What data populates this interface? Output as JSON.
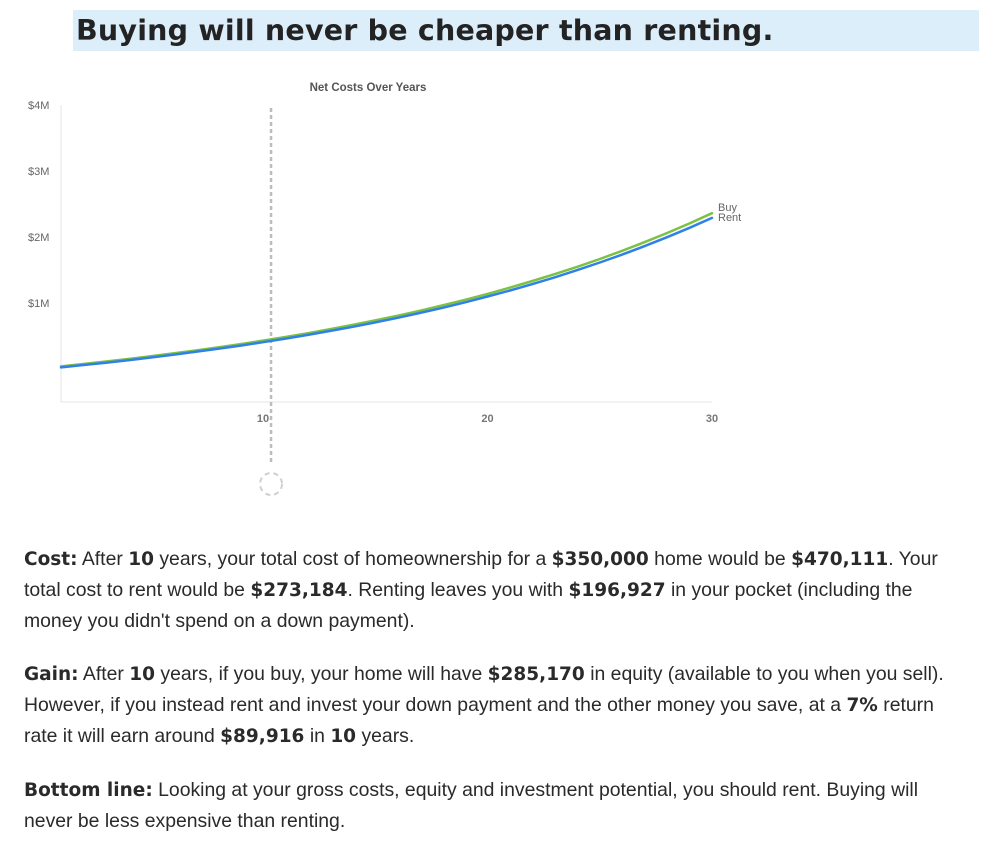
{
  "headline": "Buying will never be cheaper than renting.",
  "chart_data": {
    "type": "line",
    "title": "Net Costs Over Years",
    "xlabel": "",
    "ylabel": "",
    "xlim": [
      1,
      30
    ],
    "ylim": [
      -0.5,
      4
    ],
    "x_ticks": [
      10,
      20,
      30
    ],
    "x_tick_labels": [
      "10",
      "20",
      "30"
    ],
    "y_ticks": [
      1,
      2,
      3,
      4
    ],
    "y_tick_labels": [
      "$1M",
      "$2M",
      "$3M",
      "$4M"
    ],
    "grid": false,
    "legend": "end-of-line labels",
    "marker_year": 10,
    "x": [
      1,
      2,
      3,
      4,
      5,
      6,
      7,
      8,
      9,
      10,
      11,
      12,
      13,
      14,
      15,
      16,
      17,
      18,
      19,
      20,
      21,
      22,
      23,
      24,
      25,
      26,
      27,
      28,
      29,
      30
    ],
    "series": [
      {
        "name": "Buy",
        "color": "#7cc242",
        "values": [
          0.04,
          0.076,
          0.113,
          0.152,
          0.193,
          0.236,
          0.281,
          0.328,
          0.378,
          0.43,
          0.485,
          0.543,
          0.604,
          0.668,
          0.736,
          0.808,
          0.884,
          0.964,
          1.049,
          1.138,
          1.233,
          1.333,
          1.438,
          1.549,
          1.667,
          1.791,
          1.922,
          2.06,
          2.206,
          2.36
        ]
      },
      {
        "name": "Rent",
        "color": "#2f80e8",
        "values": [
          0.025,
          0.06,
          0.096,
          0.134,
          0.174,
          0.216,
          0.26,
          0.306,
          0.355,
          0.406,
          0.46,
          0.517,
          0.577,
          0.64,
          0.706,
          0.776,
          0.85,
          0.928,
          1.011,
          1.098,
          1.19,
          1.287,
          1.39,
          1.499,
          1.613,
          1.734,
          1.862,
          1.997,
          2.14,
          2.29
        ]
      }
    ]
  },
  "summary": {
    "cost": {
      "label": "Cost:",
      "t1": " After ",
      "years": "10",
      "t2": " years, your total cost of homeownership for a ",
      "home_price": "$350,000",
      "t3": " home would be ",
      "own_cost": "$470,111",
      "t4": ". Your total cost to rent would be ",
      "rent_cost": "$273,184",
      "t5": ". Renting leaves you with ",
      "pocket": "$196,927",
      "t6": " in your pocket (including the money you didn't spend on a down payment)."
    },
    "gain": {
      "label": "Gain:",
      "t1": " After ",
      "years": "10",
      "t2": " years, if you buy, your home will have ",
      "equity": "$285,170",
      "t3": " in equity (available to you when you sell). However, if you instead rent and invest your down payment and the other money you save, at a ",
      "rate": "7%",
      "t4": " return rate it will earn around ",
      "earn": "$89,916",
      "t5": " in ",
      "years2": "10",
      "t6": " years."
    },
    "bottom": {
      "label": "Bottom line:",
      "text": " Looking at your gross costs, equity and investment potential, you should rent. Buying will never be less expensive than renting."
    }
  }
}
